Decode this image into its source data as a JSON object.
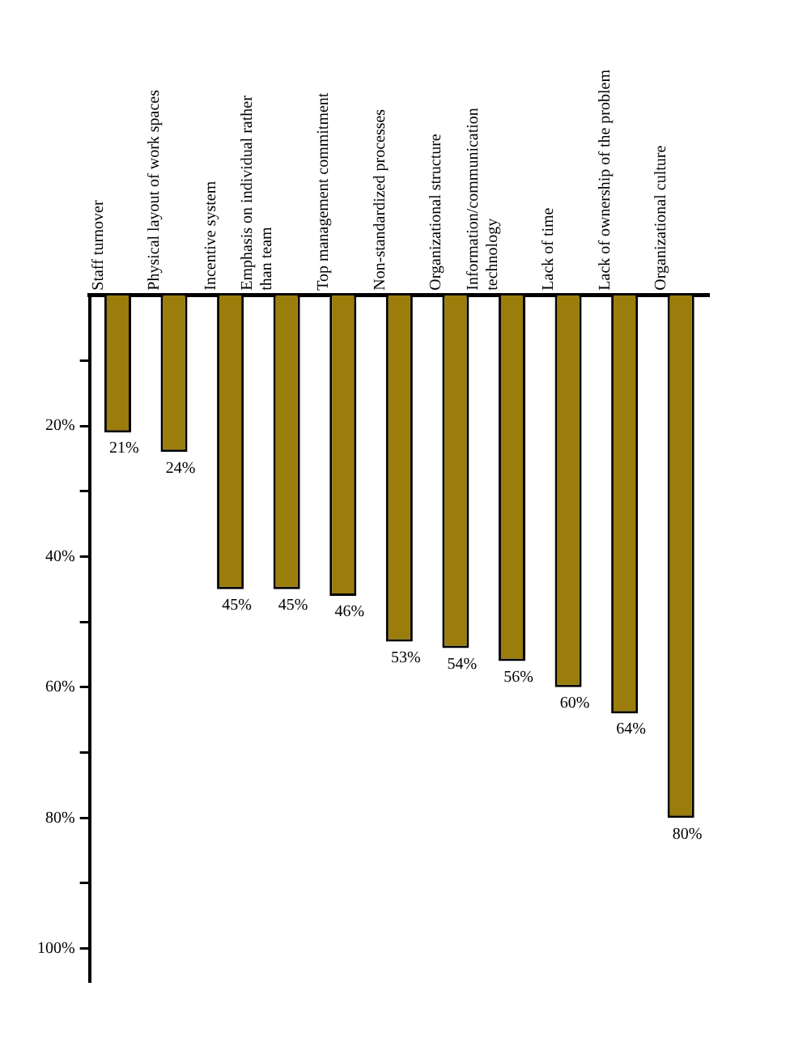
{
  "chart_data": {
    "type": "bar",
    "categories": [
      "Staff turnover",
      "Physical layout of work spaces",
      "Incentive system",
      "Emphasis on individual rather than team",
      "Top management commitment",
      "Non-standardized processes",
      "Organizational structure",
      "Information/communication technology",
      "Lack of time",
      "Lack of ownership of the problem",
      "Organizational culture"
    ],
    "values": [
      21,
      24,
      45,
      45,
      46,
      53,
      54,
      56,
      60,
      64,
      80
    ],
    "color": "#9a7d0a",
    "value_labels": [
      "21%",
      "24%",
      "45%",
      "45%",
      "46%",
      "53%",
      "54%",
      "56%",
      "60%",
      "64%",
      "80%"
    ],
    "ylim": [
      105,
      0
    ],
    "yticks": [
      {
        "value": 10,
        "label": null
      },
      {
        "value": 20,
        "label": "20%"
      },
      {
        "value": 30,
        "label": null
      },
      {
        "value": 40,
        "label": "40%"
      },
      {
        "value": 50,
        "label": null
      },
      {
        "value": 60,
        "label": "60%"
      },
      {
        "value": 70,
        "label": null
      },
      {
        "value": 80,
        "label": "80%"
      },
      {
        "value": 90,
        "label": null
      },
      {
        "value": 100,
        "label": "100%"
      }
    ],
    "grid": false,
    "legend": false
  }
}
